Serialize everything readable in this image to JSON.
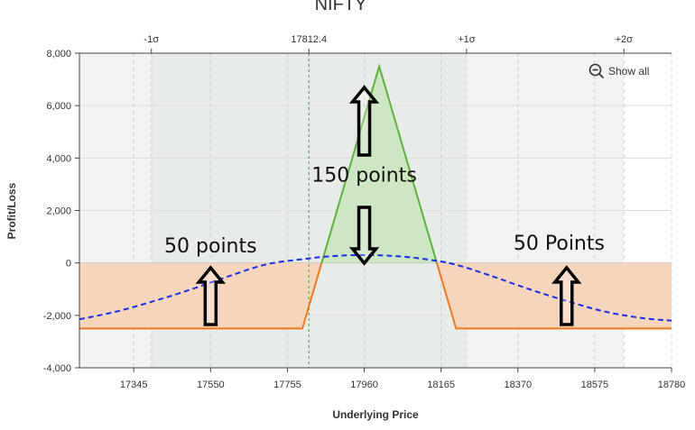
{
  "chart_data": {
    "type": "line",
    "title": "NIFTY",
    "xlabel": "Underlying Price",
    "ylabel": "Profit/Loss",
    "xlim": [
      17200,
      18780
    ],
    "ylim": [
      -4000,
      8000
    ],
    "x_ticks": [
      17345,
      17550,
      17755,
      17960,
      18165,
      18370,
      18575,
      18780
    ],
    "x_tick_labels": [
      "17345",
      "17550",
      "17755",
      "17960",
      "18165",
      "18370",
      "18575",
      "18780"
    ],
    "y_ticks": [
      -4000,
      -2000,
      0,
      2000,
      4000,
      6000,
      8000
    ],
    "y_tick_labels": [
      "-4,000",
      "-2,000",
      "0",
      "2,000",
      "4,000",
      "6,000",
      "8,000"
    ],
    "top_markers": [
      {
        "label": "-1σ",
        "x": 17392
      },
      {
        "label": "17812.4",
        "x": 17812.4
      },
      {
        "label": "+1σ",
        "x": 18233
      },
      {
        "label": "+2σ",
        "x": 18653
      }
    ],
    "sigma_band_1": [
      17392,
      18233
    ],
    "sigma_band_2": [
      17200,
      18653
    ],
    "current_price": 17812.4,
    "grid": true,
    "series": [
      {
        "style": "solid",
        "x": [
          17200,
          17795,
          18000,
          18205,
          18780
        ],
        "y": [
          -2500,
          -2500,
          7500,
          -2500,
          -2500
        ]
      },
      {
        "style": "dashed",
        "x": [
          17200,
          17300,
          17400,
          17500,
          17600,
          17700,
          17800,
          17850,
          17900,
          17960,
          18020,
          18070,
          18120,
          18200,
          18300,
          18400,
          18500,
          18600,
          18700,
          18780
        ],
        "y": [
          -2150,
          -1850,
          -1450,
          -1000,
          -500,
          -50,
          150,
          230,
          280,
          300,
          280,
          230,
          150,
          -50,
          -500,
          -1000,
          -1450,
          -1850,
          -2100,
          -2200
        ]
      }
    ],
    "colors": {
      "payoff_line": "#f07820",
      "payoff_profit": "#5fb23f",
      "profit_fill": "#cde6c3",
      "loss_fill": "#f6d5bd",
      "dashed_line": "#1a2ee8",
      "current_price_line": "#55aa55",
      "band_inner": "#e8ece8",
      "band_outer": "#f3f4f2"
    }
  },
  "controls": {
    "show_all_label": "Show all",
    "show_all_icon": "zoom-out-icon"
  },
  "annotations": [
    {
      "text": "150 points",
      "x": 17960,
      "y": 3100
    },
    {
      "text": "50 points",
      "x": 17550,
      "y": 400
    },
    {
      "text": "50 Points",
      "x": 18480,
      "y": 500
    }
  ]
}
